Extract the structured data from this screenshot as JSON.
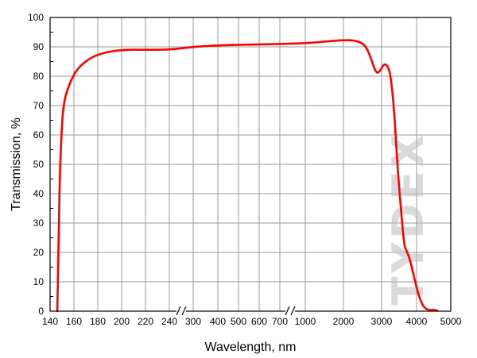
{
  "watermark": {
    "text": "TYDEX"
  },
  "chart_data": {
    "type": "line",
    "xlabel": "Wavelength, nm",
    "ylabel": "Transmission, %",
    "ylim": [
      0,
      100
    ],
    "y_ticks": [
      "0",
      "10",
      "20",
      "30",
      "40",
      "50",
      "60",
      "70",
      "80",
      "90",
      "100"
    ],
    "x_scale": "piecewise (140–240 linear, 300–700 step, 1000–5000 per printed ticks; axis breaks near 260 and 800)",
    "x_ticks": [
      "140",
      "160",
      "180",
      "200",
      "220",
      "240",
      "300",
      "400",
      "500",
      "600",
      "700",
      "1000",
      "2000",
      "3000",
      "4000",
      "5000"
    ],
    "axis_breaks": [
      "240-300",
      "700-1000"
    ],
    "grid": true,
    "line_color": "#ff0000",
    "series": [
      {
        "x": [
          146,
          147,
          148,
          150,
          152,
          155,
          158,
          162,
          168,
          175,
          185,
          200,
          220,
          240,
          300,
          400,
          500,
          600,
          700,
          1000,
          1500,
          2000,
          2300,
          2550,
          2700,
          2850,
          2950,
          3050,
          3150,
          3250,
          3350,
          3450,
          3550,
          3650,
          3700,
          3800,
          3900,
          4000,
          4100,
          4200,
          4300,
          4400,
          4500,
          4600
        ],
        "y": [
          0,
          20,
          45,
          65,
          72,
          76,
          79,
          82,
          84.5,
          86.5,
          88,
          89,
          89,
          89,
          90,
          90.5,
          90.7,
          90.8,
          91,
          91.2,
          91.8,
          92.3,
          92.2,
          91,
          87,
          81,
          81.5,
          84,
          84,
          81,
          70,
          50,
          35,
          22,
          21,
          18,
          13,
          8,
          4,
          1.5,
          0.6,
          0.3,
          0.5,
          0.2
        ]
      }
    ]
  }
}
